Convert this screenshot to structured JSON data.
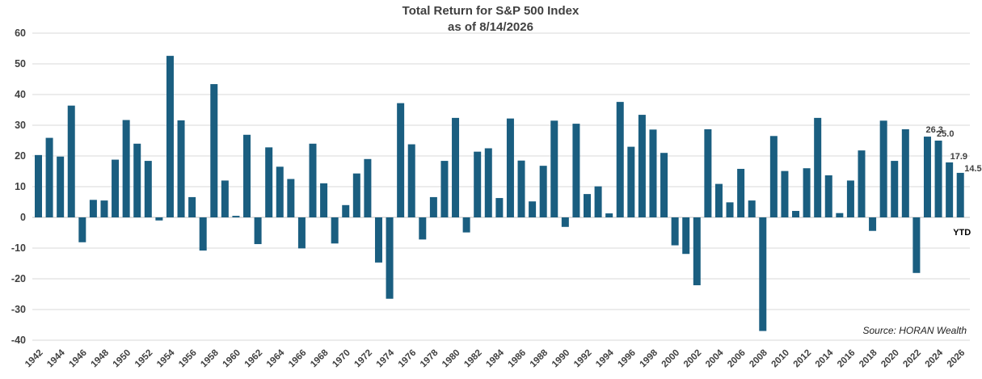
{
  "chart_data": {
    "type": "bar",
    "title": "Total Return for S&P 500 Index",
    "subtitle": "as of 8/14/2026",
    "source": "Source: HORAN Wealth",
    "ylim": [
      -40,
      60
    ],
    "yticks": [
      -40,
      -30,
      -20,
      -10,
      0,
      10,
      20,
      30,
      40,
      50,
      60
    ],
    "grid": true,
    "bar_color": "#1a5e80",
    "series": [
      {
        "x": [
          1942,
          1943,
          1944,
          1945,
          1946,
          1947,
          1948,
          1949,
          1950,
          1951,
          1952,
          1953,
          1954,
          1955,
          1956,
          1957,
          1958,
          1959,
          1960,
          1961,
          1962,
          1963,
          1964,
          1965,
          1966,
          1967,
          1968,
          1969,
          1970,
          1971,
          1972,
          1973,
          1974,
          1975,
          1976,
          1977,
          1978,
          1979,
          1980,
          1981,
          1982,
          1983,
          1984,
          1985,
          1986,
          1987,
          1988,
          1989,
          1990,
          1991,
          1992,
          1993,
          1994,
          1995,
          1996,
          1997,
          1998,
          1999,
          2000,
          2001,
          2002,
          2003,
          2004,
          2005,
          2006,
          2007,
          2008,
          2009,
          2010,
          2011,
          2012,
          2013,
          2014,
          2015,
          2016,
          2017,
          2018,
          2019,
          2020,
          2021,
          2022,
          2023,
          2024,
          2025,
          2026
        ],
        "values": [
          20.3,
          25.9,
          19.8,
          36.4,
          -8.1,
          5.7,
          5.5,
          18.8,
          31.7,
          24.0,
          18.4,
          -1.0,
          52.6,
          31.6,
          6.6,
          -10.8,
          43.4,
          12.0,
          0.5,
          26.9,
          -8.7,
          22.8,
          16.5,
          12.5,
          -10.1,
          24.0,
          11.1,
          -8.5,
          4.0,
          14.3,
          19.0,
          -14.7,
          -26.5,
          37.2,
          23.8,
          -7.2,
          6.6,
          18.4,
          32.4,
          -4.9,
          21.4,
          22.5,
          6.3,
          32.2,
          18.5,
          5.2,
          16.8,
          31.5,
          -3.1,
          30.5,
          7.6,
          10.1,
          1.3,
          37.6,
          23.0,
          33.4,
          28.6,
          21.0,
          -9.1,
          -11.9,
          -22.1,
          28.7,
          10.9,
          4.9,
          15.8,
          5.5,
          -37.0,
          26.5,
          15.1,
          2.1,
          16.0,
          32.4,
          13.7,
          1.4,
          12.0,
          21.8,
          -4.4,
          31.5,
          18.4,
          28.7,
          -18.1,
          26.3,
          25.0,
          17.9,
          14.5
        ]
      }
    ],
    "xtick_labels": [
      "1942",
      "1944",
      "1946",
      "1948",
      "1950",
      "1952",
      "1954",
      "1956",
      "1958",
      "1960",
      "1962",
      "1964",
      "1966",
      "1968",
      "1970",
      "1972",
      "1974",
      "1976",
      "1978",
      "1980",
      "1982",
      "1984",
      "1986",
      "1988",
      "1990",
      "1992",
      "1994",
      "1996",
      "1998",
      "2000",
      "2002",
      "2004",
      "2006",
      "2008",
      "2010",
      "2012",
      "2014",
      "2016",
      "2018",
      "2020",
      "2022",
      "2024",
      "2026"
    ],
    "annotations": [
      {
        "year": 2023,
        "text": "26.3"
      },
      {
        "year": 2024,
        "text": "25.0"
      },
      {
        "year": 2025,
        "text": "17.9"
      },
      {
        "year": 2026,
        "text": "14.5"
      },
      {
        "year": 2026,
        "text": "YTD"
      }
    ]
  }
}
